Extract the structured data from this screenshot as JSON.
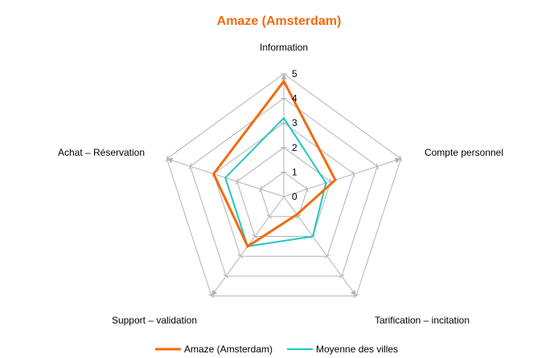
{
  "chart_data": {
    "type": "radar",
    "title": "Amaze (Amsterdam)",
    "axes": [
      "Information",
      "Compte personnel",
      "Tarification – incitation",
      "Support – validation",
      "Achat – Réservation"
    ],
    "rmin": 0,
    "rmax": 5,
    "ticks": [
      "0",
      "1",
      "2",
      "3",
      "4",
      "5"
    ],
    "series": [
      {
        "name": "Amaze (Amsterdam)",
        "color": "#f26b0f",
        "values": [
          4.7,
          2.2,
          0.9,
          2.5,
          3.0
        ]
      },
      {
        "name": "Moyenne des villes",
        "color": "#21c5c9",
        "values": [
          3.2,
          1.8,
          2.0,
          2.5,
          2.5
        ]
      }
    ],
    "grid": true,
    "legend": "bottom",
    "grid_color": "#b3b3b3"
  }
}
